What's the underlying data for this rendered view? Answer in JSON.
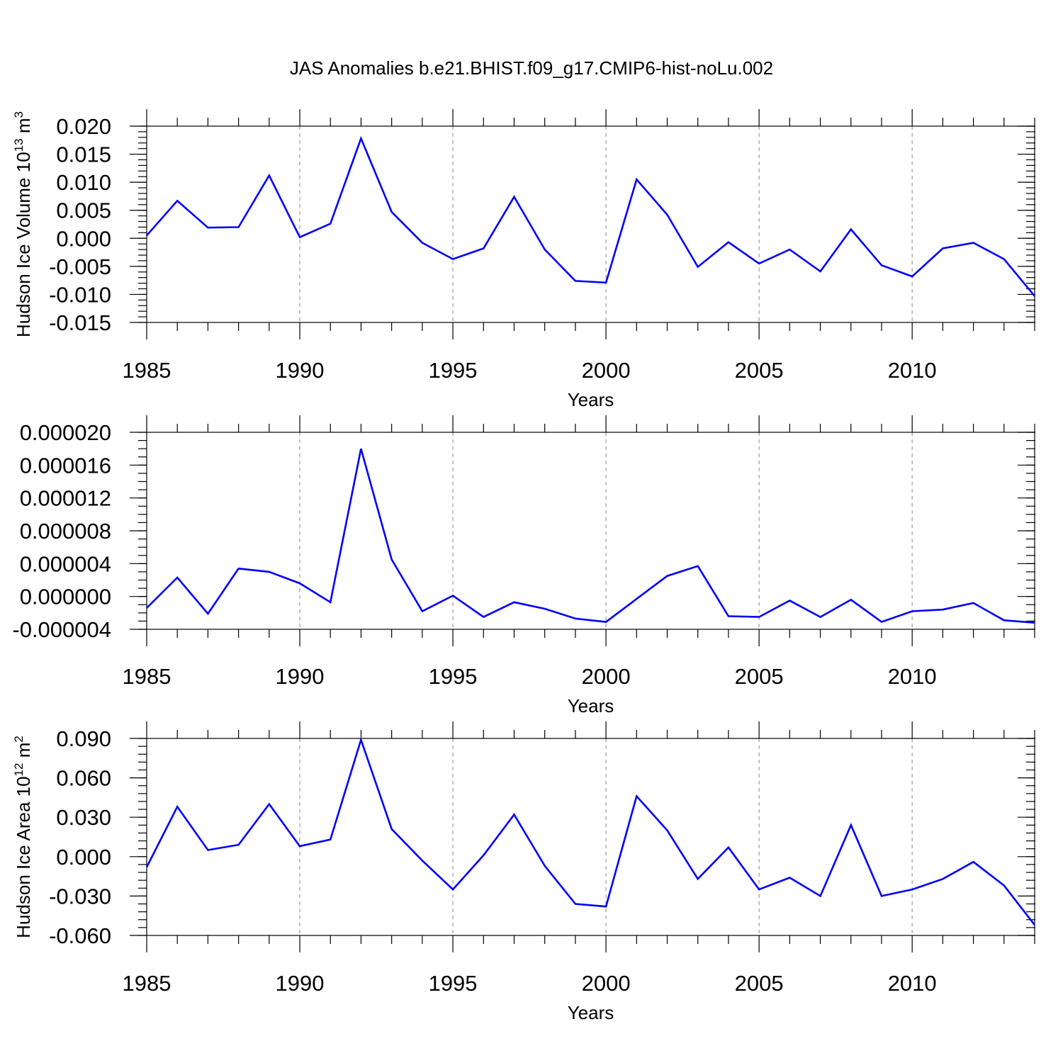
{
  "title": "JAS Anomalies b.e21.BHIST.f09_g17.CMIP6-hist-noLu.002",
  "colors": {
    "series": "#0000ff",
    "grid": "#9a9a9a",
    "axis": "#000000"
  },
  "chart_data": [
    {
      "type": "line",
      "name": "volume",
      "ylabel": "Hudson Ice Volume 10",
      "ylabel_sup": "13",
      "ylabel_unit": " m",
      "ylabel_unit_sup": "3",
      "xlabel": "Years",
      "xlim": [
        1985,
        2014
      ],
      "ylim": [
        -0.015,
        0.02
      ],
      "x_ticks": [
        "1985",
        "1990",
        "1995",
        "2000",
        "2005",
        "2010"
      ],
      "y_ticks": [
        "0.020",
        "0.015",
        "0.010",
        "0.005",
        "0.000",
        "-0.005",
        "-0.010",
        "-0.015"
      ],
      "y_tick_values": [
        0.02,
        0.015,
        0.01,
        0.005,
        0.0,
        -0.005,
        -0.01,
        -0.015
      ],
      "y_minor_step": 0.001,
      "x": [
        1985,
        1986,
        1987,
        1988,
        1989,
        1990,
        1991,
        1992,
        1993,
        1994,
        1995,
        1996,
        1997,
        1998,
        1999,
        2000,
        2001,
        2002,
        2003,
        2004,
        2005,
        2006,
        2007,
        2008,
        2009,
        2010,
        2011,
        2012,
        2013,
        2014
      ],
      "values": [
        0.0005,
        0.0067,
        0.0019,
        0.002,
        0.0112,
        0.0002,
        0.0026,
        0.0178,
        0.0047,
        -0.0008,
        -0.0037,
        -0.0018,
        0.0074,
        -0.002,
        -0.0076,
        -0.0079,
        0.0105,
        0.0042,
        -0.0051,
        -0.0007,
        -0.0045,
        -0.002,
        -0.0059,
        0.0016,
        -0.0048,
        -0.0068,
        -0.0018,
        -0.0008,
        -0.0037,
        -0.0103
      ]
    },
    {
      "type": "line",
      "name": "middle",
      "ylabel": "",
      "xlabel": "Years",
      "xlim": [
        1985,
        2014
      ],
      "ylim": [
        -4e-06,
        2e-05
      ],
      "x_ticks": [
        "1985",
        "1990",
        "1995",
        "2000",
        "2005",
        "2010"
      ],
      "y_ticks": [
        "0.000020",
        "0.000016",
        "0.000012",
        "0.000008",
        "0.000004",
        "0.000000",
        "-0.000004"
      ],
      "y_tick_values": [
        2e-05,
        1.6e-05,
        1.2e-05,
        8e-06,
        4e-06,
        0.0,
        -4e-06
      ],
      "y_minor_step": 1e-06,
      "x": [
        1985,
        1986,
        1987,
        1988,
        1989,
        1990,
        1991,
        1992,
        1993,
        1994,
        1995,
        1996,
        1997,
        1998,
        1999,
        2000,
        2001,
        2002,
        2003,
        2004,
        2005,
        2006,
        2007,
        2008,
        2009,
        2010,
        2011,
        2012,
        2013,
        2014
      ],
      "values": [
        -1.4e-06,
        2.3e-06,
        -2.1e-06,
        3.4e-06,
        3e-06,
        1.6e-06,
        -7e-07,
        1.8e-05,
        4.5e-06,
        -1.8e-06,
        1e-07,
        -2.5e-06,
        -7e-07,
        -1.5e-06,
        -2.7e-06,
        -3.1e-06,
        -3e-07,
        2.5e-06,
        3.7e-06,
        -2.4e-06,
        -2.5e-06,
        -5e-07,
        -2.5e-06,
        -4e-07,
        -3.1e-06,
        -1.8e-06,
        -1.6e-06,
        -8e-07,
        -2.9e-06,
        -3.2e-06
      ]
    },
    {
      "type": "line",
      "name": "area",
      "ylabel": "Hudson Ice Area 10",
      "ylabel_sup": "12",
      "ylabel_unit": " m",
      "ylabel_unit_sup": "2",
      "xlabel": "Years",
      "xlim": [
        1985,
        2014
      ],
      "ylim": [
        -0.06,
        0.09
      ],
      "x_ticks": [
        "1985",
        "1990",
        "1995",
        "2000",
        "2005",
        "2010"
      ],
      "y_ticks": [
        "0.090",
        "0.060",
        "0.030",
        "0.000",
        "-0.030",
        "-0.060"
      ],
      "y_tick_values": [
        0.09,
        0.06,
        0.03,
        0.0,
        -0.03,
        -0.06
      ],
      "y_minor_step": 0.006,
      "x": [
        1985,
        1986,
        1987,
        1988,
        1989,
        1990,
        1991,
        1992,
        1993,
        1994,
        1995,
        1996,
        1997,
        1998,
        1999,
        2000,
        2001,
        2002,
        2003,
        2004,
        2005,
        2006,
        2007,
        2008,
        2009,
        2010,
        2011,
        2012,
        2013,
        2014
      ],
      "values": [
        -0.008,
        0.038,
        0.005,
        0.009,
        0.04,
        0.008,
        0.013,
        0.089,
        0.021,
        -0.003,
        -0.025,
        0.001,
        0.032,
        -0.007,
        -0.036,
        -0.038,
        0.046,
        0.02,
        -0.017,
        0.007,
        -0.025,
        -0.016,
        -0.03,
        0.024,
        -0.03,
        -0.025,
        -0.017,
        -0.004,
        -0.022,
        -0.052
      ]
    }
  ]
}
